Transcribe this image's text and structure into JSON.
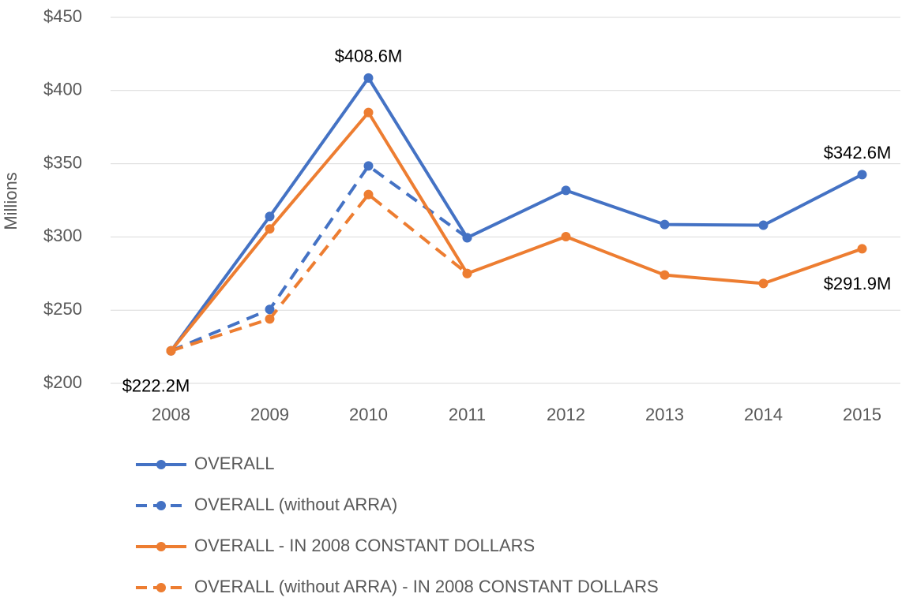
{
  "chart_data": {
    "type": "line",
    "y_label": "Millions",
    "categories": [
      "2008",
      "2009",
      "2010",
      "2011",
      "2012",
      "2013",
      "2014",
      "2015"
    ],
    "series": [
      {
        "name": "OVERALL",
        "color": "#4472c4",
        "dashed": false,
        "values": [
          222.2,
          314,
          408.6,
          299.5,
          331.8,
          308.5,
          308,
          342.6
        ],
        "value_labels": [
          "$222.2M",
          null,
          "$408.6M",
          null,
          null,
          null,
          null,
          "$342.6M"
        ]
      },
      {
        "name": "OVERALL (without ARRA)",
        "color": "#4472c4",
        "dashed": true,
        "values": [
          222.2,
          250.5,
          348.5,
          299.5,
          null,
          null,
          null,
          null
        ]
      },
      {
        "name": "OVERALL - IN 2008 CONSTANT DOLLARS",
        "color": "#ed7d31",
        "dashed": false,
        "values": [
          222.2,
          305.5,
          385,
          275,
          300.2,
          274,
          268.2,
          291.9
        ],
        "value_labels": [
          null,
          null,
          null,
          null,
          null,
          null,
          null,
          "$291.9M"
        ]
      },
      {
        "name": "OVERALL (without ARRA) - IN 2008 CONSTANT DOLLARS",
        "color": "#ed7d31",
        "dashed": true,
        "values": [
          222.2,
          244,
          329,
          275,
          null,
          null,
          null,
          null
        ]
      }
    ],
    "ylim": [
      200,
      450
    ],
    "yticks": [
      {
        "value": 200,
        "label": "$200"
      },
      {
        "value": 250,
        "label": "$250"
      },
      {
        "value": 300,
        "label": "$300"
      },
      {
        "value": 350,
        "label": "$350"
      },
      {
        "value": 400,
        "label": "$400"
      },
      {
        "value": 450,
        "label": "$450"
      }
    ],
    "grid": true,
    "legend": "bottom"
  }
}
